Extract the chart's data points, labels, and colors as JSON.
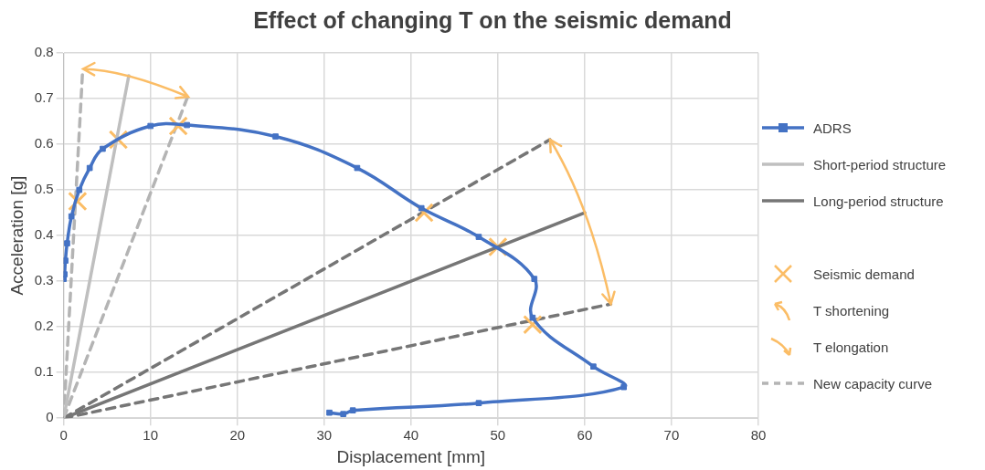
{
  "chart_data": {
    "type": "line",
    "title": "Effect of changing T on the seismic demand",
    "xlabel": "Displacement [mm]",
    "ylabel": "Acceleration [g]",
    "xlim": [
      0,
      80
    ],
    "xticks": [
      0,
      10,
      20,
      30,
      40,
      50,
      60,
      70,
      80
    ],
    "ylim": [
      0,
      0.8
    ],
    "yticks": [
      0,
      0.1,
      0.2,
      0.3,
      0.4,
      0.5,
      0.6,
      0.7,
      0.8
    ],
    "grid": true,
    "legend": "right",
    "annotations": [
      "T shortening",
      "T elongation"
    ],
    "series": [
      {
        "name": "ADRS",
        "color": "#4472c4",
        "marker": "square",
        "line_style": "solid",
        "x": [
          0,
          0.1,
          0.2,
          0.4,
          0.9,
          1.8,
          3.0,
          4.5,
          10,
          14.2,
          24.4,
          33.8,
          41.2,
          47.8,
          54.2,
          54,
          61,
          64.5,
          47.8,
          33.3,
          32.2,
          30.6
        ],
        "values": [
          0.305,
          0.315,
          0.345,
          0.383,
          0.442,
          0.5,
          0.548,
          0.59,
          0.64,
          0.642,
          0.617,
          0.548,
          0.46,
          0.397,
          0.305,
          0.22,
          0.113,
          0.068,
          0.033,
          0.017,
          0.009,
          0.012
        ]
      },
      {
        "name": "Short-period structure",
        "color": "#bfbfbf",
        "marker": "none",
        "line_style": "solid",
        "x": [
          0,
          7.5
        ],
        "values": [
          0,
          0.75
        ]
      },
      {
        "name": "Long-period structure",
        "color": "#767676",
        "marker": "none",
        "line_style": "solid",
        "x": [
          0,
          60
        ],
        "values": [
          0,
          0.45
        ]
      },
      {
        "name": "Seismic demand",
        "type": "scatter",
        "color": "#fbbd66",
        "marker": "cross",
        "x": [
          1.6,
          6.3,
          13.2,
          41.5,
          50,
          54
        ],
        "values": [
          0.475,
          0.61,
          0.64,
          0.45,
          0.375,
          0.205
        ]
      },
      {
        "name": "New capacity curve",
        "color": "#b4b4b4",
        "marker": "none",
        "line_style": "dashed",
        "x": [
          0,
          2.2,
          null,
          0,
          14.3
        ],
        "values": [
          0,
          0.766,
          null,
          0,
          0.705
        ]
      },
      {
        "color": "#767676",
        "marker": "none",
        "line_style": "dashed",
        "x": [
          0,
          56,
          null,
          0,
          63
        ],
        "values": [
          0,
          0.61,
          null,
          0,
          0.25
        ]
      }
    ]
  }
}
